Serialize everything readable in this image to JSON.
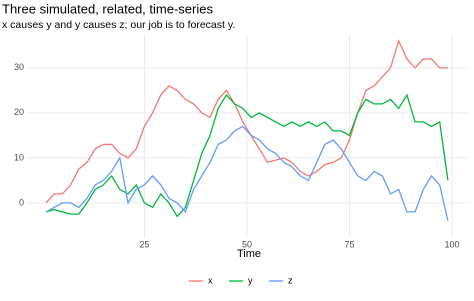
{
  "chart_data": {
    "type": "line",
    "title": "Three simulated, related, time-series",
    "subtitle": "x causes y and y causes z; our job is to forecast y.",
    "x_label": "Time",
    "x": [
      1,
      3,
      5,
      7,
      9,
      11,
      13,
      15,
      17,
      19,
      21,
      23,
      25,
      27,
      29,
      31,
      33,
      35,
      37,
      39,
      41,
      43,
      45,
      47,
      49,
      51,
      53,
      55,
      57,
      59,
      61,
      63,
      65,
      67,
      69,
      71,
      73,
      75,
      77,
      79,
      81,
      83,
      85,
      87,
      89,
      91,
      93,
      95,
      97,
      99
    ],
    "series": [
      {
        "name": "x",
        "color": "#F8766D",
        "values": [
          0,
          2,
          2,
          4,
          7.5,
          9,
          12,
          13,
          13,
          11,
          10,
          12,
          17,
          20,
          24,
          26,
          25,
          23,
          22,
          20,
          19,
          23,
          25,
          22,
          18,
          15,
          12,
          9,
          9.5,
          10,
          9,
          7,
          6,
          7,
          8.5,
          9,
          10,
          14,
          20,
          25,
          26,
          28,
          30,
          36,
          32,
          30,
          32,
          32,
          30,
          30
        ]
      },
      {
        "name": "y",
        "color": "#00BA38",
        "values": [
          -2,
          -1.5,
          -2,
          -2.5,
          -2.5,
          0,
          3,
          4,
          6,
          3,
          2,
          4,
          0,
          -1,
          2,
          0,
          -3,
          -1,
          5,
          11,
          15,
          21,
          24,
          22,
          21,
          19,
          20,
          19,
          18,
          17,
          18,
          17,
          18,
          17,
          18,
          16,
          16,
          15,
          20,
          23,
          22,
          22,
          23,
          21,
          24,
          18,
          18,
          17,
          18,
          5
        ]
      },
      {
        "name": "z",
        "color": "#619CFF",
        "values": [
          -2,
          -1,
          0,
          0,
          -1,
          1,
          4,
          5,
          7,
          10,
          0,
          3,
          4,
          6,
          4,
          1,
          0,
          -2,
          3,
          6,
          9,
          13,
          14,
          16,
          17,
          15,
          14,
          12,
          11,
          9,
          8,
          6,
          5,
          9,
          13,
          14,
          12,
          9,
          6,
          5,
          7,
          6,
          2,
          3,
          -2,
          -2,
          3,
          6,
          4,
          -4
        ]
      }
    ],
    "xlim": [
      -3.4,
      104.4
    ],
    "ylim": [
      -7.8,
      37.3
    ],
    "xticks": [
      25,
      50,
      75,
      100
    ],
    "yticks": [
      0,
      10,
      20,
      30
    ],
    "grid": true,
    "legend": "bottom"
  }
}
